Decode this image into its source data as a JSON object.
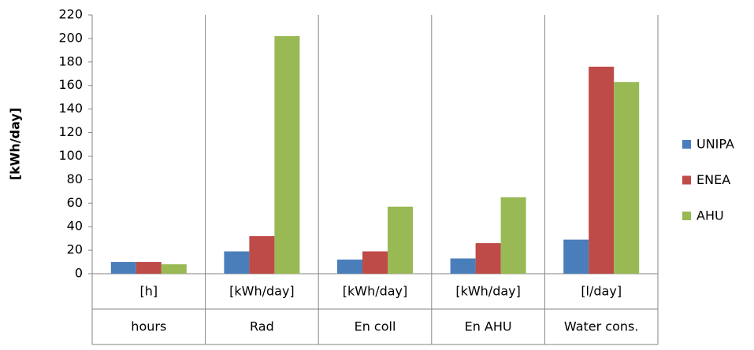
{
  "chart_data": {
    "type": "bar",
    "y_label": "[kWh/day]",
    "categories": [
      "hours",
      "Rad",
      "En coll",
      "En AHU",
      "Water cons."
    ],
    "units": [
      "[h]",
      "[kWh/day]",
      "[kWh/day]",
      "[kWh/day]",
      "[l/day]"
    ],
    "series": [
      {
        "name": "UNIPA",
        "color": "#4a7ebb",
        "values": [
          10,
          19,
          12,
          13,
          29
        ]
      },
      {
        "name": "ENEA",
        "color": "#be4b48",
        "values": [
          10,
          32,
          19,
          26,
          176
        ]
      },
      {
        "name": "AHU",
        "color": "#98b954",
        "values": [
          8,
          202,
          57,
          65,
          163
        ]
      }
    ],
    "ylim": [
      0,
      220
    ],
    "yticks": [
      0,
      20,
      40,
      60,
      80,
      100,
      120,
      140,
      160,
      180,
      200,
      220
    ],
    "grid": false,
    "legend": "right"
  }
}
